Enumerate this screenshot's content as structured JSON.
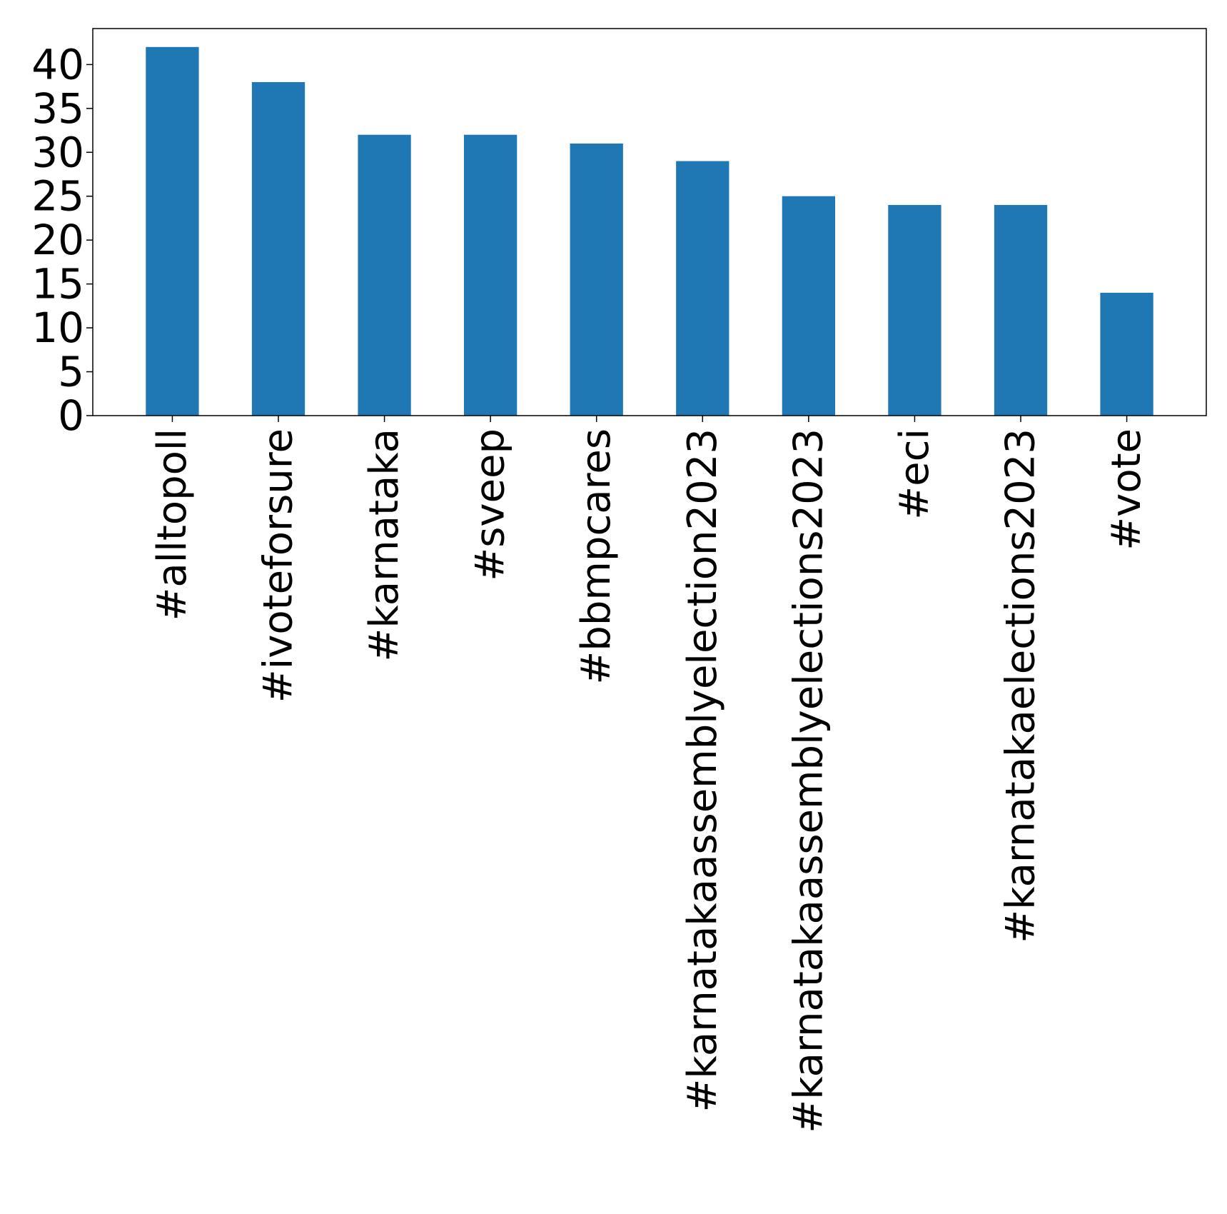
{
  "chart_data": {
    "type": "bar",
    "categories": [
      "#alltopoll",
      "#ivoteforsure",
      "#karnataka",
      "#sveep",
      "#bbmpcares",
      "#karnatakaassemblyelection2023",
      "#karnatakaassemblyelections2023",
      "#eci",
      "#karnatakaelections2023",
      "#vote"
    ],
    "values": [
      42,
      38,
      32,
      32,
      31,
      29,
      25,
      24,
      24,
      14
    ],
    "title": "",
    "xlabel": "",
    "ylabel": "",
    "ylim": [
      0,
      44.1
    ],
    "yticks": [
      "0",
      "5",
      "10",
      "15",
      "20",
      "25",
      "30",
      "35",
      "40"
    ],
    "grid": false,
    "legend": "none",
    "colors": {
      "bar": "#1f77b4",
      "axis": "#000000",
      "background": "#ffffff"
    }
  }
}
